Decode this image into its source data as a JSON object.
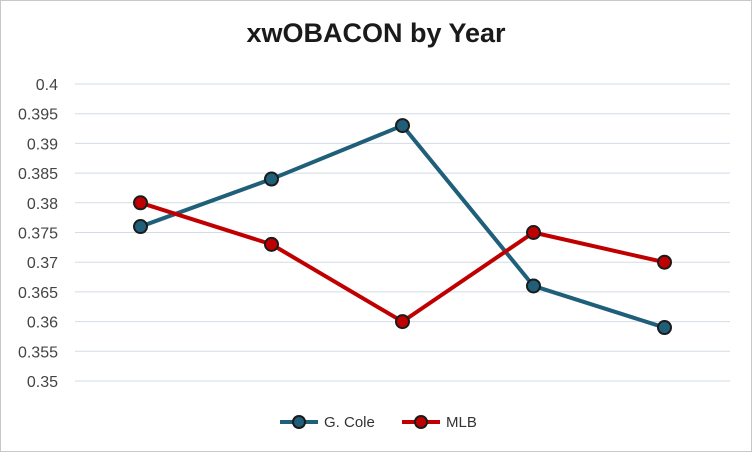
{
  "chart_data": {
    "type": "line",
    "title": "xwOBACON by Year",
    "xlabel": "",
    "ylabel": "",
    "categories": [
      "",
      "",
      "",
      "",
      ""
    ],
    "ylim": [
      0.35,
      0.4
    ],
    "yticks": [
      "0.35",
      "0.355",
      "0.36",
      "0.365",
      "0.37",
      "0.375",
      "0.38",
      "0.385",
      "0.39",
      "0.395",
      "0.4"
    ],
    "grid": true,
    "legend": "bottom",
    "series": [
      {
        "name": "G. Cole",
        "color": "#1f5f7a",
        "values": [
          0.376,
          0.384,
          0.393,
          0.366,
          0.359
        ]
      },
      {
        "name": "MLB",
        "color": "#c00000",
        "values": [
          0.38,
          0.373,
          0.36,
          0.375,
          0.37
        ]
      }
    ]
  }
}
